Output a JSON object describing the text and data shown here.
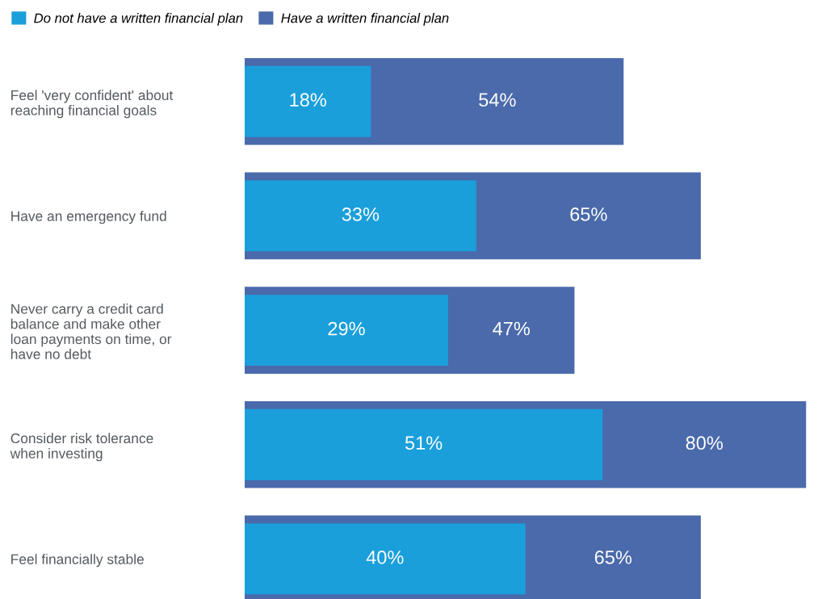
{
  "chart_data": {
    "type": "bar",
    "orientation": "horizontal",
    "stacked": false,
    "categories": [
      "Feel 'very confident' about\nreaching financial goals",
      "Have an emergency fund",
      "Never carry a credit card\nbalance and make other\nloan payments on time, or\nhave no debt",
      "Consider risk tolerance\nwhen investing",
      "Feel financially stable"
    ],
    "series": [
      {
        "name": "Have a written financial plan",
        "color": "#4a6aab",
        "values": [
          54,
          65,
          47,
          80,
          65
        ],
        "value_labels": [
          "54%",
          "65%",
          "47%",
          "80%",
          "65%"
        ]
      },
      {
        "name": "Do not have a written financial plan",
        "color": "#1a9fdb",
        "values": [
          18,
          33,
          29,
          51,
          40
        ],
        "value_labels": [
          "18%",
          "33%",
          "29%",
          "51%",
          "40%"
        ]
      }
    ],
    "data_labels": true,
    "legend": "top left",
    "tick_labels": "y",
    "grid": false
  }
}
